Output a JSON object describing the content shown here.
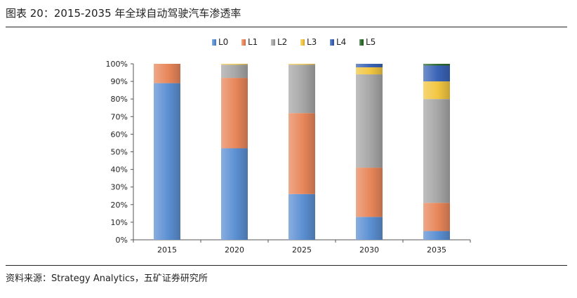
{
  "figure": {
    "title": "图表 20：2015-2035 年全球自动驾驶汽车渗透率",
    "source": "资料来源：Strategy Analytics，五矿证券研究所"
  },
  "chart_data": {
    "type": "bar",
    "stacked": true,
    "categories": [
      "2015",
      "2020",
      "2025",
      "2030",
      "2035"
    ],
    "ylim": [
      0,
      100
    ],
    "yticks": [
      0,
      10,
      20,
      30,
      40,
      50,
      60,
      70,
      80,
      90,
      100
    ],
    "ytick_labels": [
      "0%",
      "10%",
      "20%",
      "30%",
      "40%",
      "50%",
      "60%",
      "70%",
      "80%",
      "90%",
      "100%"
    ],
    "grid": false,
    "legend_position": "top",
    "series": [
      {
        "name": "L0",
        "color": "#5b8fd2",
        "values": [
          89,
          52,
          26,
          13,
          5
        ]
      },
      {
        "name": "L1",
        "color": "#e8865a",
        "values": [
          11,
          40,
          46,
          28,
          16
        ]
      },
      {
        "name": "L2",
        "color": "#a6a6a6",
        "values": [
          0,
          7.5,
          27.5,
          53,
          59
        ]
      },
      {
        "name": "L3",
        "color": "#f2c640",
        "values": [
          0,
          0.5,
          0.5,
          4,
          10
        ]
      },
      {
        "name": "L4",
        "color": "#3a63b6",
        "values": [
          0,
          0,
          0,
          2,
          9
        ]
      },
      {
        "name": "L5",
        "color": "#2e6b2e",
        "values": [
          0,
          0,
          0,
          0,
          1
        ]
      }
    ]
  }
}
